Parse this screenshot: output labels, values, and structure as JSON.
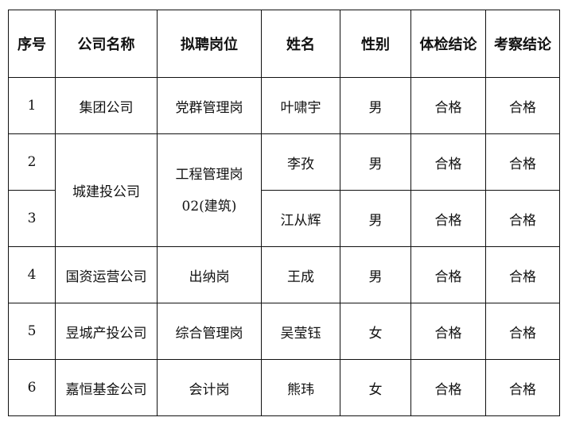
{
  "headers": [
    "序号",
    "公司名称",
    "拟聘岗位",
    "姓名",
    "性别",
    "体检结论",
    "考察结论"
  ],
  "rows": [
    {
      "no": "1",
      "company": "集团公司",
      "position": "党群管理岗",
      "name": "叶啸宇",
      "gender": "男",
      "exam": "合格",
      "review": "合格"
    },
    {
      "no": "2",
      "company": "城建投公司",
      "position_line1": "工程管理岗",
      "position_line2": "02(建筑)",
      "name": "李孜",
      "gender": "男",
      "exam": "合格",
      "review": "合格"
    },
    {
      "no": "3",
      "name": "江从辉",
      "gender": "男",
      "exam": "合格",
      "review": "合格"
    },
    {
      "no": "4",
      "company": "国资运营公司",
      "position": "出纳岗",
      "name": "王成",
      "gender": "男",
      "exam": "合格",
      "review": "合格"
    },
    {
      "no": "5",
      "company": "昱城产投公司",
      "position": "综合管理岗",
      "name": "吴莹钰",
      "gender": "女",
      "exam": "合格",
      "review": "合格"
    },
    {
      "no": "6",
      "company": "嘉恒基金公司",
      "position": "会计岗",
      "name": "熊玮",
      "gender": "女",
      "exam": "合格",
      "review": "合格"
    }
  ]
}
